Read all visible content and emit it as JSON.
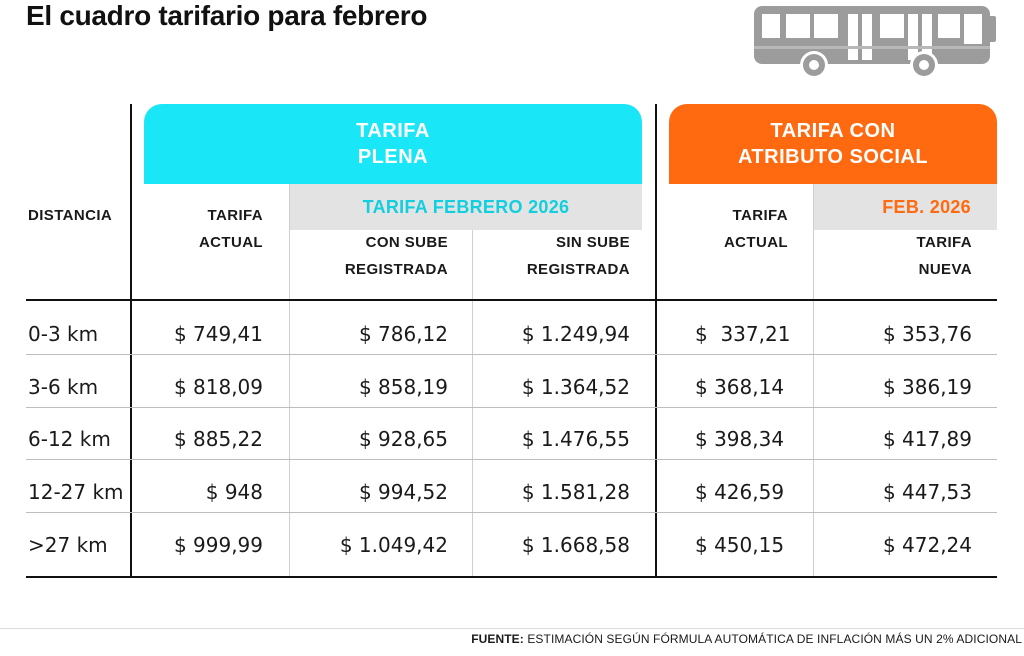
{
  "title": "El cuadro tarifario para febrero",
  "bus_icon": "bus-icon",
  "colors": {
    "cyan": "#19e6f6",
    "orange": "#ff6a10",
    "band_gray": "#e3e3e3"
  },
  "bands": {
    "plena_line1": "TARIFA",
    "plena_line2": "PLENA",
    "social_line1": "TARIFA CON",
    "social_line2": "ATRIBUTO SOCIAL"
  },
  "subbands": {
    "plena": "TARIFA FEBRERO 2026",
    "social": "FEB. 2026"
  },
  "headers": {
    "distancia": "DISTANCIA",
    "actual_line1": "TARIFA",
    "actual_line2": "ACTUAL",
    "con_sube_line1": "CON SUBE",
    "con_sube_line2": "REGISTRADA",
    "sin_sube_line1": "SIN SUBE",
    "sin_sube_line2": "REGISTRADA",
    "social_actual_line1": "TARIFA",
    "social_actual_line2": "ACTUAL",
    "social_nueva_line1": "TARIFA",
    "social_nueva_line2": "NUEVA"
  },
  "rows": [
    {
      "distancia": "0-3 km",
      "actual": "$ 749,41",
      "con_sube": "$ 786,12",
      "sin_sube": "$ 1.249,94",
      "social_actual": "$  337,21",
      "social_nueva": "$ 353,76"
    },
    {
      "distancia": "3-6 km",
      "actual": "$ 818,09",
      "con_sube": "$ 858,19",
      "sin_sube": "$ 1.364,52",
      "social_actual": "$ 368,14",
      "social_nueva": "$ 386,19"
    },
    {
      "distancia": "6-12 km",
      "actual": "$ 885,22",
      "con_sube": "$ 928,65",
      "sin_sube": "$ 1.476,55",
      "social_actual": "$ 398,34",
      "social_nueva": "$ 417,89"
    },
    {
      "distancia": "12-27 km",
      "actual": "$ 948",
      "con_sube": "$ 994,52",
      "sin_sube": "$ 1.581,28",
      "social_actual": "$ 426,59",
      "social_nueva": "$ 447,53"
    },
    {
      "distancia": ">27 km",
      "actual": "$ 999,99",
      "con_sube": "$ 1.049,42",
      "sin_sube": "$ 1.668,58",
      "social_actual": "$ 450,15",
      "social_nueva": "$ 472,24"
    }
  ],
  "footer": {
    "label": "FUENTE:",
    "text": " ESTIMACIÓN SEGÚN FÓRMULA AUTOMÁTICA DE INFLACIÓN MÁS UN 2% ADICIONAL"
  }
}
